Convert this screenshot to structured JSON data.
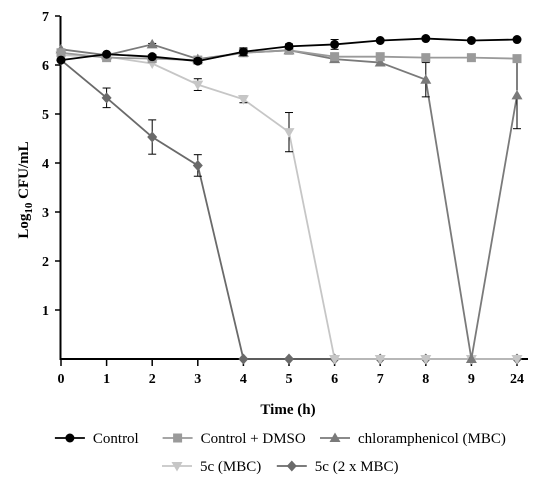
{
  "chart_data": {
    "type": "line",
    "xlabel": "Time (h)",
    "ylabel_main": "Log",
    "ylabel_sub": "10",
    "ylabel_rest": " CFU/mL",
    "categories": [
      "0",
      "1",
      "2",
      "3",
      "4",
      "5",
      "6",
      "7",
      "8",
      "9",
      "24"
    ],
    "ylim": [
      0,
      7
    ],
    "yticks": [
      1,
      2,
      3,
      4,
      5,
      6,
      7
    ],
    "grid": false,
    "legend_position": "bottom",
    "series": [
      {
        "name": "Control",
        "marker": "circle",
        "color": "#000000",
        "values": [
          6.1,
          6.22,
          6.17,
          6.08,
          6.27,
          6.38,
          6.42,
          6.5,
          6.54,
          6.5,
          6.52
        ],
        "errors": [
          0,
          0,
          0.03,
          0.05,
          0.08,
          0.05,
          0.1,
          0.03,
          0.03,
          0.03,
          0.03
        ]
      },
      {
        "name": "Control + DMSO",
        "marker": "square",
        "color": "#9a9a9a",
        "values": [
          6.25,
          6.15,
          6.13,
          6.1,
          6.25,
          6.3,
          6.17,
          6.17,
          6.15,
          6.15,
          6.13
        ],
        "errors": [
          0,
          0,
          0,
          0,
          0,
          0,
          0,
          0,
          0,
          0,
          0
        ]
      },
      {
        "name": "chloramphenicol (MBC)",
        "marker": "triangle-up",
        "color": "#7a7a7a",
        "values": [
          6.32,
          6.2,
          6.42,
          6.12,
          6.25,
          6.3,
          6.12,
          6.05,
          5.7,
          0,
          5.38
        ],
        "errors": [
          0,
          0,
          0.02,
          0.05,
          0.04,
          0,
          0.05,
          0.05,
          0.35,
          0,
          0.68
        ]
      },
      {
        "name": "5c (MBC)",
        "marker": "triangle-down",
        "color": "#c6c6c6",
        "values": [
          6.2,
          6.17,
          6.03,
          5.6,
          5.3,
          4.63,
          0,
          0,
          0,
          0,
          0
        ],
        "errors": [
          0,
          0,
          0,
          0.12,
          0.07,
          0.4,
          0,
          0,
          0,
          0,
          0
        ]
      },
      {
        "name": "5c (2 x MBC)",
        "marker": "diamond",
        "color": "#6a6a6a",
        "values": [
          6.1,
          5.33,
          4.53,
          3.95,
          0,
          0,
          0,
          0,
          0,
          0,
          0
        ],
        "errors": [
          0,
          0.2,
          0.35,
          0.22,
          0,
          0,
          0,
          0,
          0,
          0,
          0
        ]
      }
    ]
  }
}
